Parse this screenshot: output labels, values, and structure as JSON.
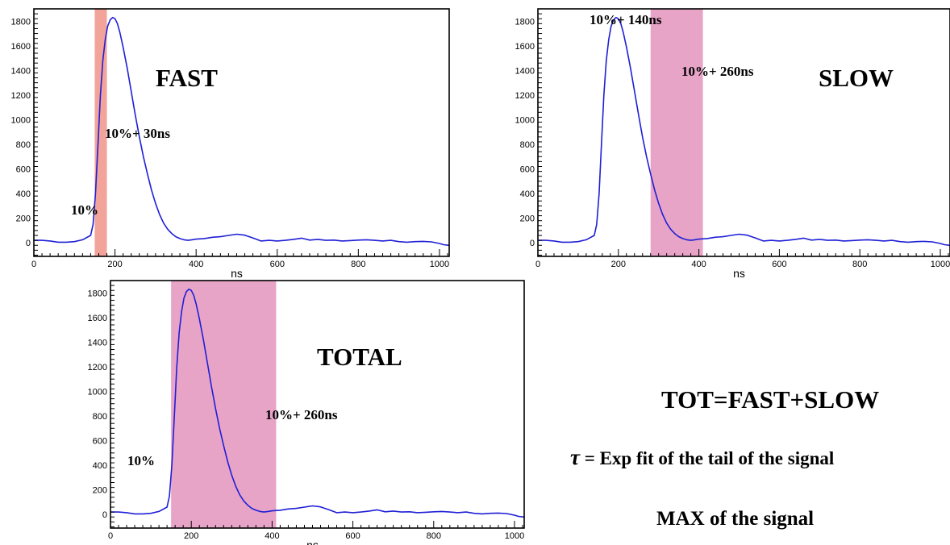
{
  "chart_data": [
    {
      "id": "fast",
      "type": "line",
      "xlabel": "ns",
      "ylabel": "",
      "xlim": [
        0,
        1024
      ],
      "ylim": [
        -110,
        1900
      ],
      "xticks": [
        0,
        200,
        400,
        600,
        800,
        1000
      ],
      "yticks": [
        0,
        200,
        400,
        600,
        800,
        1000,
        1200,
        1400,
        1600,
        1800
      ],
      "grid": false,
      "shaded_region": {
        "x_start": 150,
        "x_end": 180,
        "color": "#f2a39a"
      },
      "label_title": "FAST",
      "label_start": "10%",
      "label_end": "10%+ 30ns",
      "series_color": "#1f1fd6"
    },
    {
      "id": "slow",
      "type": "line",
      "xlabel": "ns",
      "ylabel": "",
      "xlim": [
        0,
        1024
      ],
      "ylim": [
        -110,
        1900
      ],
      "xticks": [
        0,
        200,
        400,
        600,
        800,
        1000
      ],
      "yticks": [
        0,
        200,
        400,
        600,
        800,
        1000,
        1200,
        1400,
        1600,
        1800
      ],
      "grid": false,
      "shaded_region": {
        "x_start": 280,
        "x_end": 410,
        "color": "#e8a4c7"
      },
      "label_title": "SLOW",
      "label_start": "10%+ 140ns",
      "label_end": "10%+ 260ns",
      "series_color": "#1f1fd6"
    },
    {
      "id": "total",
      "type": "line",
      "xlabel": "ns",
      "ylabel": "",
      "xlim": [
        0,
        1024
      ],
      "ylim": [
        -110,
        1900
      ],
      "xticks": [
        0,
        200,
        400,
        600,
        800,
        1000
      ],
      "yticks": [
        0,
        200,
        400,
        600,
        800,
        1000,
        1200,
        1400,
        1600,
        1800
      ],
      "grid": false,
      "shaded_region": {
        "x_start": 150,
        "x_end": 410,
        "color": "#e8a4c7"
      },
      "label_title": "TOTAL",
      "label_start": "10%",
      "label_end": "10%+ 260ns",
      "series_color": "#1f1fd6"
    }
  ],
  "signal": {
    "x": [
      0,
      20,
      40,
      60,
      80,
      100,
      120,
      140,
      146,
      152,
      158,
      164,
      170,
      176,
      182,
      188,
      194,
      200,
      206,
      212,
      220,
      230,
      240,
      250,
      260,
      270,
      280,
      290,
      300,
      310,
      320,
      330,
      340,
      350,
      360,
      370,
      380,
      390,
      400,
      420,
      440,
      460,
      480,
      500,
      520,
      540,
      560,
      580,
      600,
      620,
      640,
      660,
      680,
      700,
      720,
      740,
      760,
      780,
      800,
      820,
      840,
      860,
      880,
      900,
      920,
      940,
      960,
      980,
      1000,
      1010,
      1024
    ],
    "y": [
      20,
      20,
      15,
      5,
      5,
      10,
      25,
      60,
      150,
      400,
      800,
      1200,
      1480,
      1650,
      1760,
      1810,
      1830,
      1820,
      1780,
      1710,
      1590,
      1420,
      1230,
      1040,
      860,
      700,
      560,
      430,
      320,
      230,
      160,
      110,
      75,
      50,
      35,
      25,
      20,
      25,
      30,
      35,
      45,
      50,
      60,
      70,
      62,
      40,
      15,
      20,
      15,
      20,
      28,
      38,
      22,
      28,
      20,
      22,
      15,
      18,
      22,
      25,
      20,
      15,
      20,
      10,
      5,
      10,
      12,
      8,
      -5,
      -15,
      -20
    ]
  },
  "notes": {
    "tot_formula": "TOT=FAST+SLOW",
    "tau_symbol": "τ",
    "tau_text": "= Exp fit of the tail of the signal",
    "max_text": "MAX of the signal"
  }
}
